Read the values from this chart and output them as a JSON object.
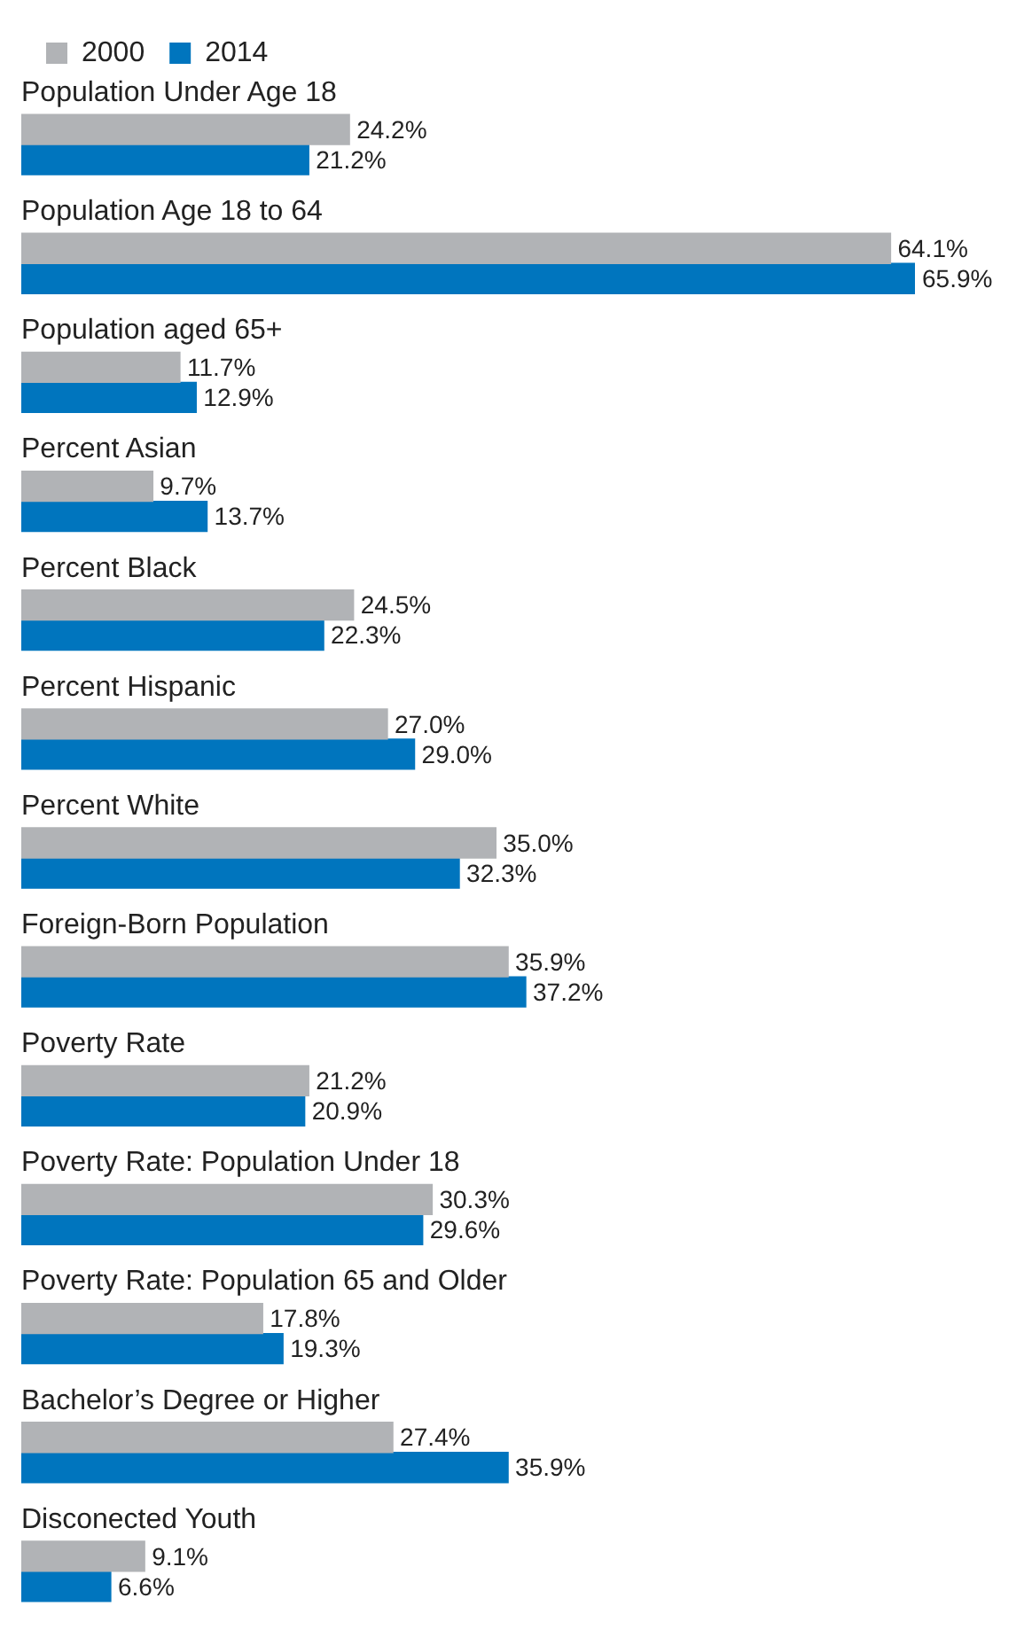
{
  "chart_data": {
    "type": "bar",
    "orientation": "horizontal",
    "legend": "top left",
    "categories": [
      "Population Under Age 18",
      "Population Age 18 to 64",
      "Population aged 65+",
      "Percent Asian",
      "Percent Black",
      "Percent Hispanic",
      "Percent White",
      "Foreign-Born Population",
      "Poverty Rate",
      "Poverty Rate: Population Under 18",
      "Poverty Rate: Population 65 and Older",
      "Bachelor’s Degree or Higher",
      "Disconected Youth"
    ],
    "series": [
      {
        "name": "2000",
        "color": "#b1b3b6",
        "values": [
          24.2,
          64.1,
          11.7,
          9.7,
          24.5,
          27.0,
          35.0,
          35.9,
          21.2,
          30.3,
          17.8,
          27.4,
          9.1
        ],
        "value_labels": [
          "24.2%",
          "64.1%",
          "11.7%",
          "9.7%",
          "24.5%",
          "27.0%",
          "35.0%",
          "35.9%",
          "21.2%",
          "30.3%",
          "17.8%",
          "27.4%",
          "9.1%"
        ]
      },
      {
        "name": "2014",
        "color": "#0075be",
        "values": [
          21.2,
          65.9,
          12.9,
          13.7,
          22.3,
          29.0,
          32.3,
          37.2,
          20.9,
          29.6,
          19.3,
          35.9,
          6.6
        ],
        "value_labels": [
          "21.2%",
          "65.9%",
          "12.9%",
          "13.7%",
          "22.3%",
          "29.0%",
          "32.3%",
          "37.2%",
          "20.9%",
          "29.6%",
          "19.3%",
          "35.9%",
          "6.6%"
        ]
      }
    ]
  }
}
